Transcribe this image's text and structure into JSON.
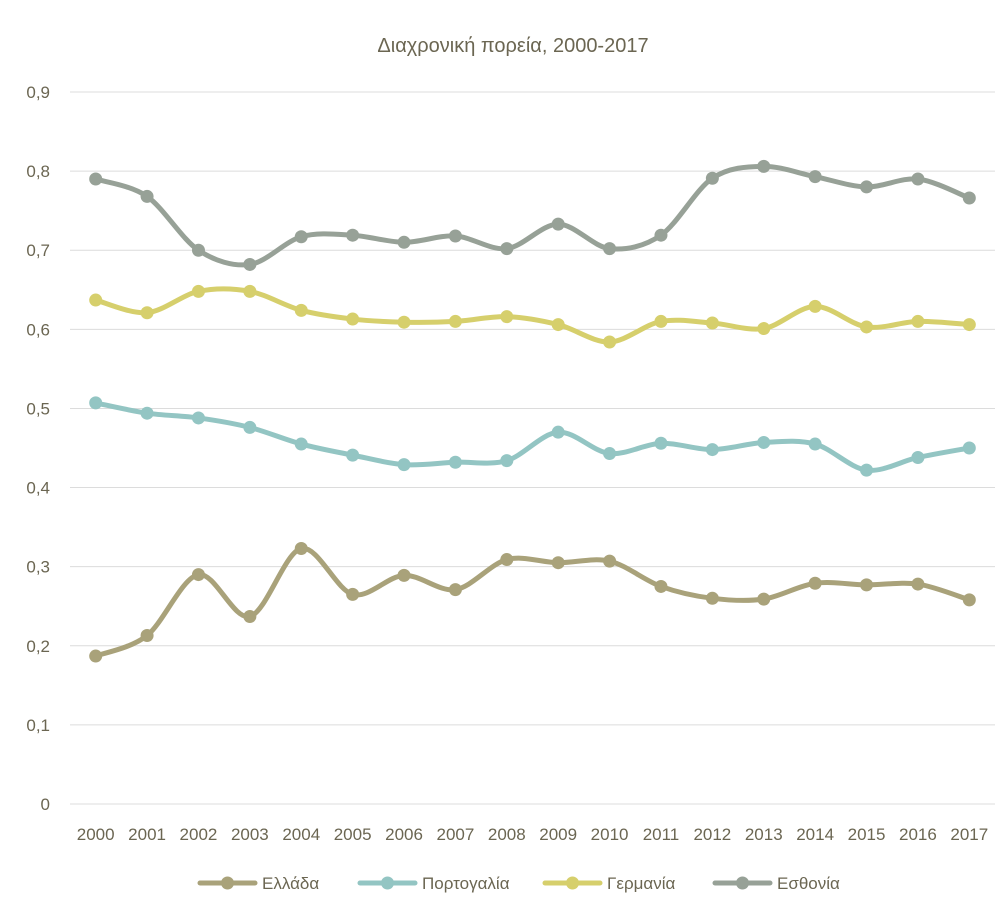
{
  "chart_data": {
    "type": "line",
    "title": "Διαχρονική πορεία, 2000-2017",
    "xlabel": "",
    "ylabel": "",
    "categories": [
      "2000",
      "2001",
      "2002",
      "2003",
      "2004",
      "2005",
      "2006",
      "2007",
      "2008",
      "2009",
      "2010",
      "2011",
      "2012",
      "2013",
      "2014",
      "2015",
      "2016",
      "2017"
    ],
    "ylim": [
      0,
      0.9
    ],
    "yticks": [
      "0",
      "0,1",
      "0,2",
      "0,3",
      "0,4",
      "0,5",
      "0,6",
      "0,7",
      "0,8",
      "0,9"
    ],
    "grid": true,
    "legend_position": "bottom",
    "series": [
      {
        "name": "Ελλάδα",
        "color": "#a9a27a",
        "values": [
          0.187,
          0.213,
          0.29,
          0.237,
          0.323,
          0.265,
          0.289,
          0.271,
          0.309,
          0.305,
          0.307,
          0.275,
          0.26,
          0.259,
          0.279,
          0.277,
          0.278,
          0.258
        ]
      },
      {
        "name": "Πορτογαλία",
        "color": "#93c5c3",
        "values": [
          0.507,
          0.494,
          0.488,
          0.476,
          0.455,
          0.441,
          0.429,
          0.432,
          0.434,
          0.47,
          0.443,
          0.456,
          0.448,
          0.457,
          0.455,
          0.422,
          0.438,
          0.45
        ]
      },
      {
        "name": "Γερμανία",
        "color": "#d6cf6c",
        "values": [
          0.637,
          0.621,
          0.648,
          0.648,
          0.624,
          0.613,
          0.609,
          0.61,
          0.616,
          0.606,
          0.584,
          0.61,
          0.608,
          0.601,
          0.629,
          0.603,
          0.61,
          0.606
        ]
      },
      {
        "name": "Εσθονία",
        "color": "#97a197",
        "values": [
          0.79,
          0.768,
          0.7,
          0.682,
          0.717,
          0.719,
          0.71,
          0.718,
          0.702,
          0.733,
          0.702,
          0.719,
          0.791,
          0.806,
          0.793,
          0.78,
          0.79,
          0.766
        ]
      }
    ]
  }
}
